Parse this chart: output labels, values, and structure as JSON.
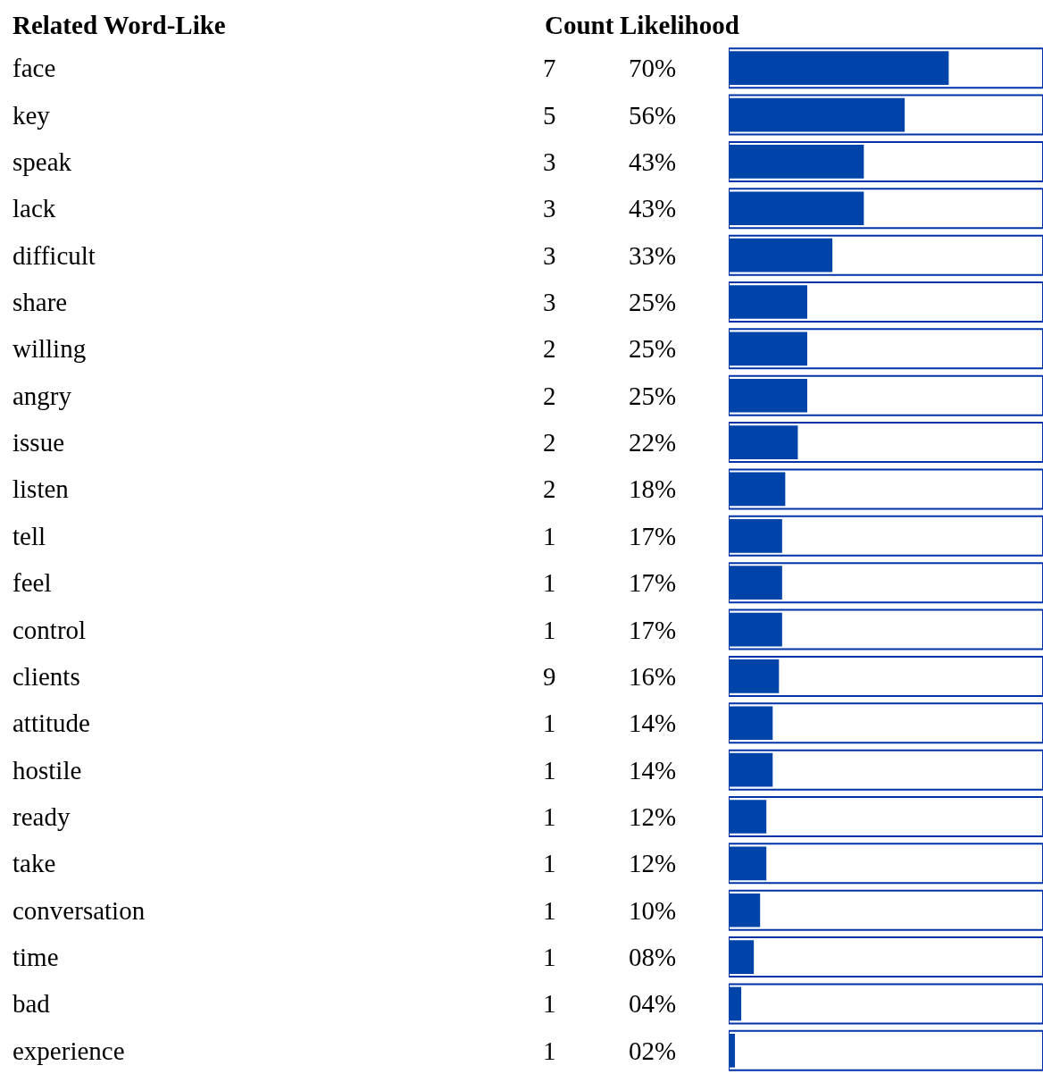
{
  "chart_data": {
    "type": "bar",
    "orientation": "horizontal",
    "categories": [
      "face",
      "key",
      "speak",
      "lack",
      "difficult",
      "share",
      "willing",
      "angry",
      "issue",
      "listen",
      "tell",
      "feel",
      "control",
      "clients",
      "attitude",
      "hostile",
      "ready",
      "take",
      "conversation",
      "time",
      "bad",
      "experience"
    ],
    "series": [
      {
        "color": "#0033aa",
        "values": [
          100,
          100,
          100,
          100,
          100,
          100,
          100,
          100,
          100,
          100,
          100,
          100,
          100,
          100,
          100,
          100,
          100,
          100,
          100,
          100,
          100,
          100
        ]
      },
      {
        "color": "#0044aa",
        "values": [
          70,
          56,
          43,
          43,
          33,
          25,
          25,
          25,
          22,
          18,
          17,
          17,
          17,
          16,
          14,
          14,
          12,
          12,
          10,
          8,
          4,
          2
        ],
        "value_labels": [
          "70%",
          "56%",
          "43%",
          "43%",
          "33%",
          "25%",
          "25%",
          "25%",
          "22%",
          "18%",
          "17%",
          "17%",
          "17%",
          "16%",
          "14%",
          "14%",
          "12%",
          "12%",
          "10%",
          "08%",
          "04%",
          "02%"
        ]
      }
    ],
    "xlim": [
      0,
      100
    ],
    "annotations": [
      "Related Word-Like",
      "Count",
      "Likelihood",
      "7",
      "5",
      "3",
      "3",
      "3",
      "3",
      "2",
      "2",
      "2",
      "2",
      "1",
      "1",
      "1",
      "9",
      "1",
      "1",
      "1",
      "1",
      "1",
      "1",
      "1",
      "1"
    ]
  }
}
